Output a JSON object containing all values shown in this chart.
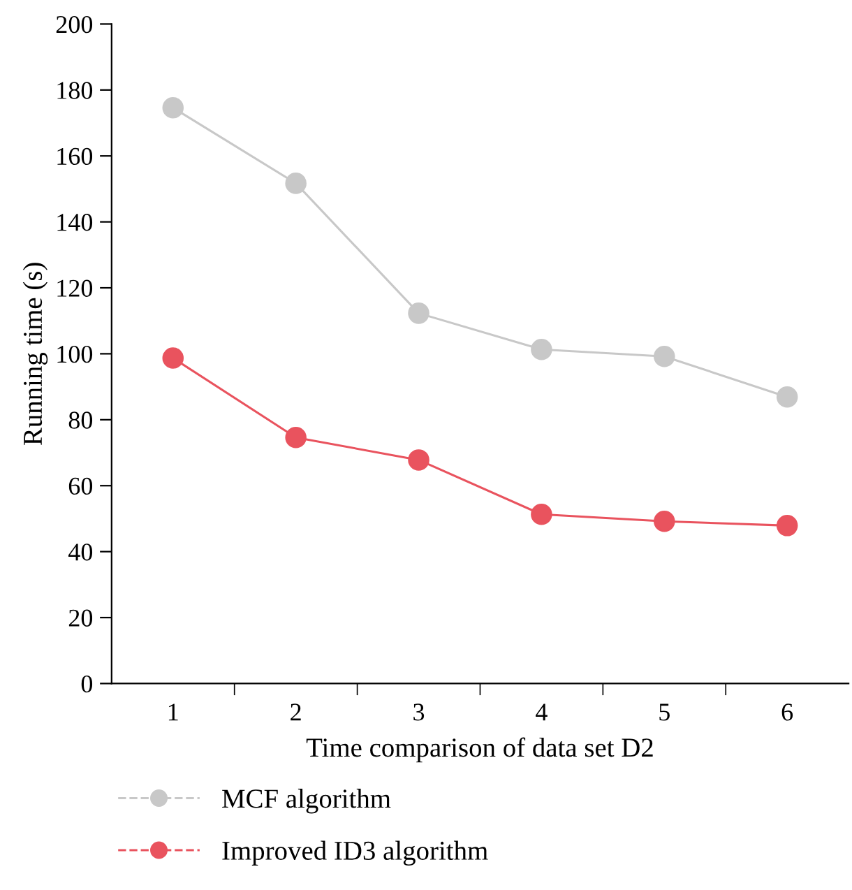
{
  "chart_data": {
    "type": "line",
    "xlabel": "Time comparison of data set D2",
    "ylabel": "Running time (s)",
    "categories": [
      "1",
      "2",
      "3",
      "4",
      "5",
      "6"
    ],
    "series": [
      {
        "name": "MCF algorithm",
        "color": "#c8c8c8",
        "values": [
          174.6,
          151.7,
          112.3,
          101.3,
          99.2,
          86.9
        ]
      },
      {
        "name": "Improved ID3 algorithm",
        "color": "#e9535e",
        "values": [
          98.7,
          74.6,
          67.8,
          51.3,
          49.2,
          47.9
        ]
      }
    ],
    "ylim": [
      0,
      200
    ],
    "yticks": [
      0,
      20,
      40,
      60,
      80,
      100,
      120,
      140,
      160,
      180,
      200
    ],
    "grid": false,
    "legend": "bottom",
    "marker": "circle",
    "line_style": "solid"
  }
}
